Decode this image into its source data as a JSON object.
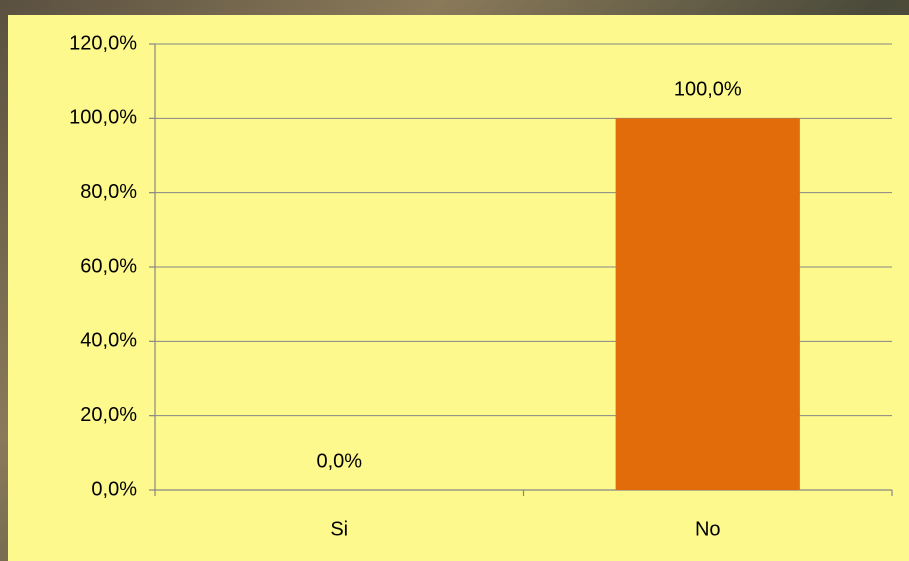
{
  "chart_data": {
    "type": "bar",
    "categories": [
      "Si",
      "No"
    ],
    "values": [
      0,
      100
    ],
    "value_labels": [
      "0,0%",
      "100,0%"
    ],
    "color": "#e36c0a",
    "ylim": [
      0,
      120
    ],
    "yticks": [
      {
        "value": 0,
        "label": "0,0%"
      },
      {
        "value": 20,
        "label": "20,0%"
      },
      {
        "value": 40,
        "label": "40,0%"
      },
      {
        "value": 60,
        "label": "60,0%"
      },
      {
        "value": 80,
        "label": "80,0%"
      },
      {
        "value": 100,
        "label": "100,0%"
      },
      {
        "value": 120,
        "label": "120,0%"
      }
    ],
    "grid": true
  }
}
